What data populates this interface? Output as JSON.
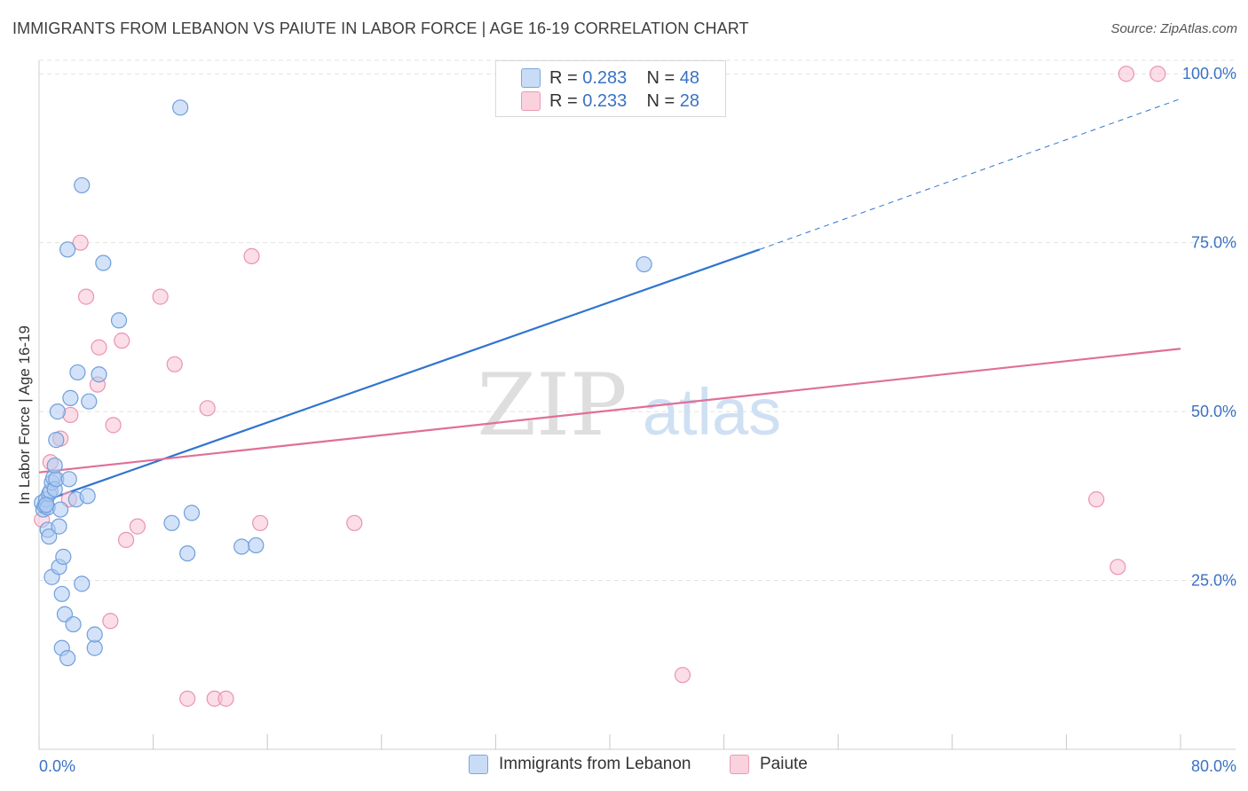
{
  "header": {
    "title": "IMMIGRANTS FROM LEBANON VS PAIUTE IN LABOR FORCE | AGE 16-19 CORRELATION CHART",
    "source": "Source: ZipAtlas.com"
  },
  "watermark": {
    "zip": "ZIP",
    "atlas": "atlas"
  },
  "colors": {
    "blue_fill": "#aecbf2",
    "blue_stroke": "#6f9fdc",
    "blue_line": "#2f74d0",
    "pink_fill": "#f7c3d3",
    "pink_stroke": "#eb93b0",
    "pink_line": "#e06f98",
    "tick_text": "#3a72c4",
    "grid": "#e2e2e2"
  },
  "legend_top": {
    "rows": [
      {
        "r_label": "R = ",
        "r_value": "0.283",
        "n_label": "N = ",
        "n_value": "48"
      },
      {
        "r_label": "R = ",
        "r_value": "0.233",
        "n_label": "N = ",
        "n_value": "28"
      }
    ]
  },
  "legend_bottom": [
    "Immigrants from Lebanon",
    "Paiute"
  ],
  "chart_data": {
    "type": "scatter",
    "title": "IMMIGRANTS FROM LEBANON VS PAIUTE IN LABOR FORCE | AGE 16-19 CORRELATION CHART",
    "xlabel": "",
    "ylabel": "In Labor Force | Age 16-19",
    "xlim": [
      0,
      80
    ],
    "ylim": [
      0,
      102
    ],
    "x_tick_labels": [
      "0.0%",
      "80.0%"
    ],
    "y_ticks": [
      25,
      50,
      75,
      100
    ],
    "y_tick_labels": [
      "25.0%",
      "50.0%",
      "75.0%",
      "100.0%"
    ],
    "grid": true,
    "series": [
      {
        "name": "Immigrants from Lebanon",
        "r": 0.283,
        "n": 48,
        "points": [
          [
            0.2,
            36.5
          ],
          [
            0.3,
            35.5
          ],
          [
            0.4,
            36.0
          ],
          [
            0.5,
            37.0
          ],
          [
            0.6,
            35.8
          ],
          [
            0.7,
            37.8
          ],
          [
            0.8,
            38.2
          ],
          [
            0.9,
            39.5
          ],
          [
            1.0,
            40.2
          ],
          [
            1.1,
            38.5
          ],
          [
            1.2,
            40.0
          ],
          [
            0.6,
            32.5
          ],
          [
            0.7,
            31.5
          ],
          [
            0.9,
            25.5
          ],
          [
            1.1,
            42.0
          ],
          [
            1.2,
            45.8
          ],
          [
            1.3,
            50.0
          ],
          [
            1.4,
            27.0
          ],
          [
            1.5,
            35.5
          ],
          [
            1.6,
            23.0
          ],
          [
            1.7,
            28.5
          ],
          [
            1.8,
            20.0
          ],
          [
            1.6,
            15.0
          ],
          [
            2.0,
            13.5
          ],
          [
            2.1,
            40.0
          ],
          [
            2.2,
            52.0
          ],
          [
            2.4,
            18.5
          ],
          [
            2.6,
            37.0
          ],
          [
            2.7,
            55.8
          ],
          [
            3.0,
            24.5
          ],
          [
            3.4,
            37.5
          ],
          [
            3.5,
            51.5
          ],
          [
            2.0,
            74.0
          ],
          [
            3.0,
            83.5
          ],
          [
            3.9,
            15.0
          ],
          [
            4.2,
            55.5
          ],
          [
            4.5,
            72.0
          ],
          [
            5.6,
            63.5
          ],
          [
            9.3,
            33.5
          ],
          [
            9.9,
            95.0
          ],
          [
            10.4,
            29.0
          ],
          [
            10.7,
            35.0
          ],
          [
            14.2,
            30.0
          ],
          [
            15.2,
            30.2
          ],
          [
            1.4,
            33.0
          ],
          [
            3.9,
            17.0
          ],
          [
            42.4,
            71.8
          ],
          [
            0.5,
            36.2
          ]
        ],
        "trend": {
          "x0": 0,
          "y0": 36.5,
          "x1": 50.5,
          "y1": 74.0,
          "x_dash_end": 80,
          "y_dash_end": 96.3
        }
      },
      {
        "name": "Paiute",
        "r": 0.233,
        "n": 28,
        "points": [
          [
            0.2,
            34.0
          ],
          [
            0.8,
            42.5
          ],
          [
            1.5,
            46.0
          ],
          [
            2.1,
            37.0
          ],
          [
            2.2,
            49.5
          ],
          [
            2.9,
            75.0
          ],
          [
            3.3,
            67.0
          ],
          [
            4.1,
            54.0
          ],
          [
            4.2,
            59.5
          ],
          [
            5.0,
            19.0
          ],
          [
            5.2,
            48.0
          ],
          [
            5.8,
            60.5
          ],
          [
            6.1,
            31.0
          ],
          [
            6.9,
            33.0
          ],
          [
            8.5,
            67.0
          ],
          [
            9.5,
            57.0
          ],
          [
            10.4,
            7.5
          ],
          [
            11.8,
            50.5
          ],
          [
            12.3,
            7.5
          ],
          [
            13.1,
            7.5
          ],
          [
            14.9,
            73.0
          ],
          [
            15.5,
            33.5
          ],
          [
            22.1,
            33.5
          ],
          [
            45.1,
            11.0
          ],
          [
            74.1,
            37.0
          ],
          [
            75.6,
            27.0
          ],
          [
            76.2,
            100.0
          ],
          [
            78.4,
            100.0
          ]
        ],
        "trend": {
          "x0": 0,
          "y0": 41.0,
          "x1": 80,
          "y1": 59.3
        }
      }
    ]
  }
}
